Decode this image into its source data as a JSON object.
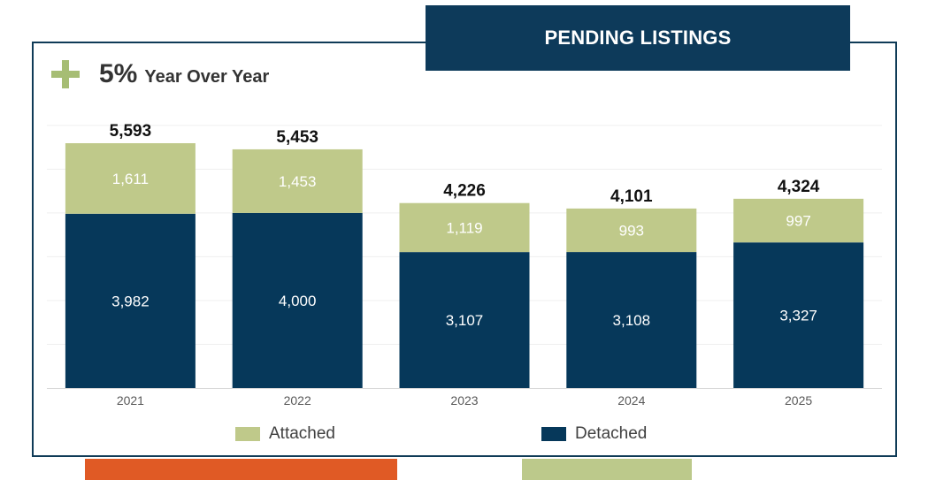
{
  "header": {
    "title": "PENDING LISTINGS"
  },
  "summary": {
    "icon": "plus-icon",
    "percent": "5%",
    "text": "Year Over Year"
  },
  "colors": {
    "attached": "#bfc98a",
    "detached": "#06385a",
    "accent_orange": "#e05a25",
    "accent_green": "#bcc98b"
  },
  "legend": [
    {
      "key": "attached",
      "label": "Attached"
    },
    {
      "key": "detached",
      "label": "Detached"
    }
  ],
  "chart_data": {
    "type": "bar",
    "stacked": true,
    "categories": [
      "2021",
      "2022",
      "2023",
      "2024",
      "2025"
    ],
    "series": [
      {
        "name": "Detached",
        "values": [
          3982,
          4000,
          3107,
          3108,
          3327
        ]
      },
      {
        "name": "Attached",
        "values": [
          1611,
          1453,
          1119,
          993,
          997
        ]
      }
    ],
    "totals": [
      5593,
      5453,
      4226,
      4101,
      4324
    ],
    "value_labels": {
      "Detached": [
        "3,982",
        "4,000",
        "3,107",
        "3,108",
        "3,327"
      ],
      "Attached": [
        "1,611",
        "1,453",
        "1,119",
        "993",
        "997"
      ],
      "totals": [
        "5,593",
        "5,453",
        "4,226",
        "4,101",
        "4,324"
      ]
    },
    "ylim": [
      0,
      6000
    ],
    "grid": true,
    "legend_position": "bottom"
  }
}
